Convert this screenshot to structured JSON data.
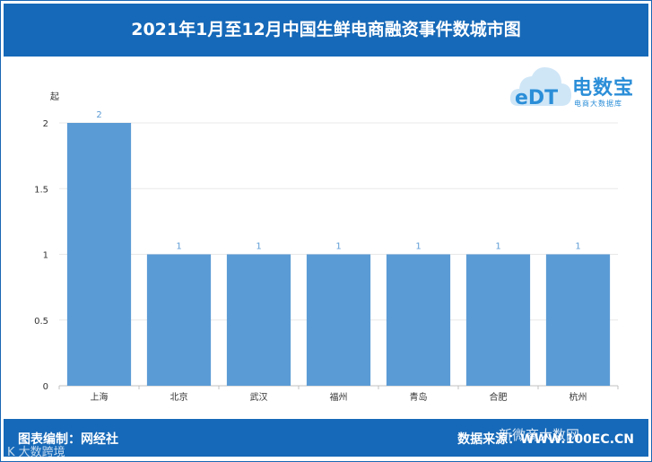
{
  "title": "2021年1月至12月中国生鲜电商融资事件数城市图",
  "footer": {
    "left": "图表编制：网经社",
    "right": "数据来源：WWW.100EC.CN"
  },
  "watermarks": {
    "left": "K 大数跨境",
    "right": "新微商大数网"
  },
  "logo": {
    "letters": "eDT",
    "main": "电数宝",
    "sub": "电商大数据库"
  },
  "colors": {
    "header": "#1669b8",
    "bar": "#5b9bd5",
    "label": "#5b9bd5"
  },
  "chart_data": {
    "type": "bar",
    "ylabel": "起",
    "ylim": [
      0,
      2
    ],
    "yticks": [
      0,
      0.5,
      1,
      1.5,
      2
    ],
    "ytick_labels": [
      "0",
      "0.5",
      "1",
      "1.5",
      "2"
    ],
    "categories": [
      "上海",
      "北京",
      "武汉",
      "福州",
      "青岛",
      "合肥",
      "杭州"
    ],
    "values": [
      2,
      1,
      1,
      1,
      1,
      1,
      1
    ]
  }
}
